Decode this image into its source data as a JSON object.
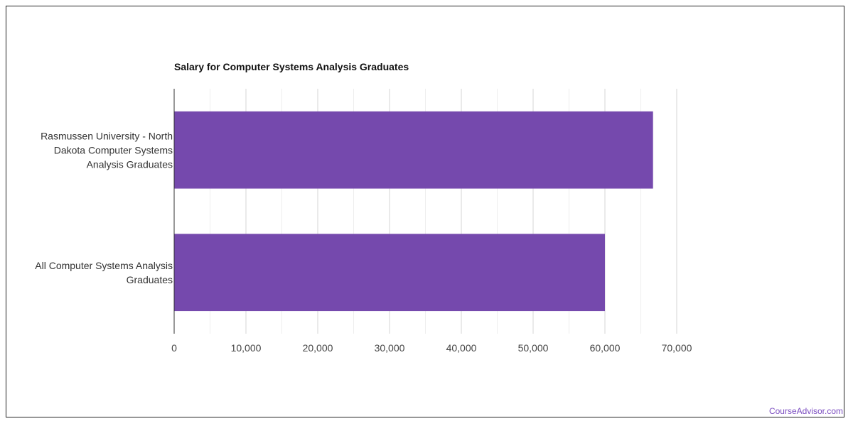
{
  "chart_data": {
    "type": "bar",
    "orientation": "horizontal",
    "title": "Salary for Computer Systems Analysis Graduates",
    "categories": [
      "Rasmussen University - North Dakota Computer Systems Analysis Graduates",
      "All Computer Systems Analysis Graduates"
    ],
    "category_label_lines": [
      [
        "Rasmussen University - North",
        "Dakota Computer Systems",
        "Analysis Graduates"
      ],
      [
        "All Computer Systems Analysis",
        "Graduates"
      ]
    ],
    "values": [
      66700,
      60000
    ],
    "xlim": [
      0,
      70000
    ],
    "xticks": [
      0,
      10000,
      20000,
      30000,
      40000,
      50000,
      60000,
      70000
    ],
    "xtick_labels": [
      "0",
      "10,000",
      "20,000",
      "30,000",
      "40,000",
      "50,000",
      "60,000",
      "70,000"
    ],
    "xlabel": "",
    "ylabel": "",
    "grid": true,
    "bar_color": "#7549ad",
    "grid_color": "#e3e3e3"
  },
  "watermark": "CourseAdvisor.com"
}
